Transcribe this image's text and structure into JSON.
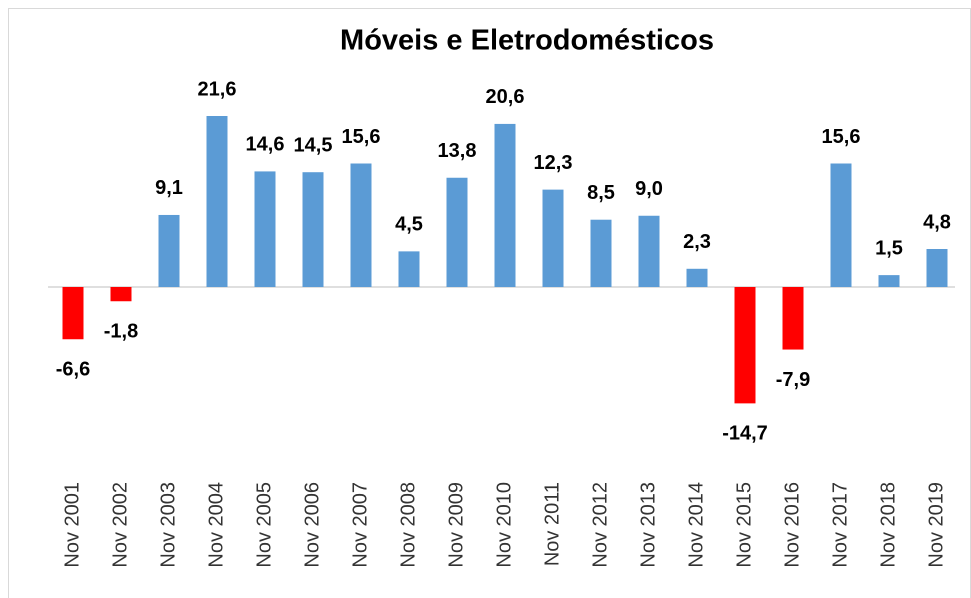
{
  "chart_data": {
    "type": "bar",
    "title": "Móveis e Eletrodomésticos",
    "categories": [
      "Nov 2001",
      "Nov 2002",
      "Nov 2003",
      "Nov 2004",
      "Nov 2005",
      "Nov 2006",
      "Nov 2007",
      "Nov 2008",
      "Nov 2009",
      "Nov 2010",
      "Nov 2011",
      "Nov 2012",
      "Nov 2013",
      "Nov 2014",
      "Nov 2015",
      "Nov 2016",
      "Nov 2017",
      "Nov 2018",
      "Nov 2019"
    ],
    "values": [
      -6.6,
      -1.8,
      9.1,
      21.6,
      14.6,
      14.5,
      15.6,
      4.5,
      13.8,
      20.6,
      12.3,
      8.5,
      9.0,
      2.3,
      -14.7,
      -7.9,
      15.6,
      1.5,
      4.8
    ],
    "value_labels": [
      "-6,6",
      "-1,8",
      "9,1",
      "21,6",
      "14,6",
      "14,5",
      "15,6",
      "4,5",
      "13,8",
      "20,6",
      "12,3",
      "8,5",
      "9,0",
      "2,3",
      "-14,7",
      "-7,9",
      "15,6",
      "1,5",
      "4,8"
    ],
    "color": "#5b9bd5",
    "negative_color": "#ff0000"
  }
}
